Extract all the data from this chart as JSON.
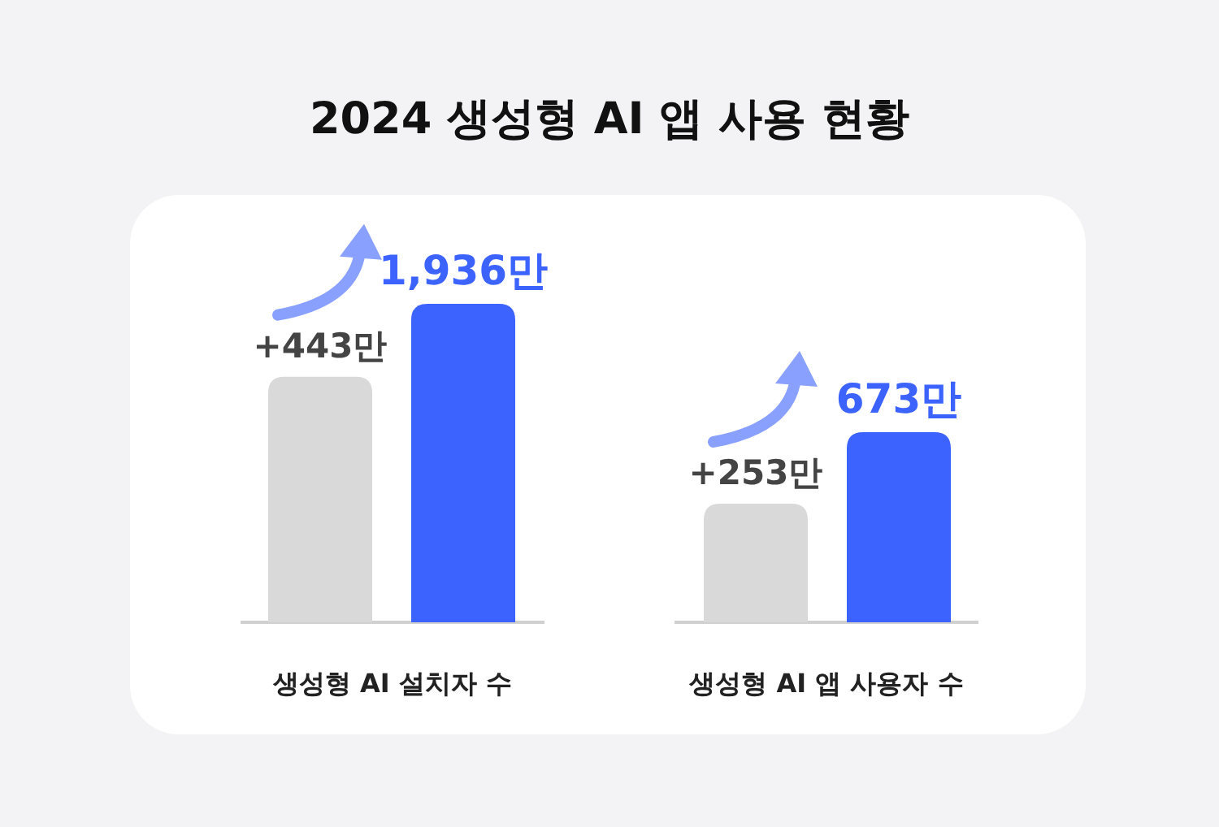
{
  "chart_data": [
    {
      "type": "bar",
      "title": "2024 생성형 AI 앱 사용 현황",
      "xlabel": "생성형 AI 설치자 수",
      "categories": [
        null,
        null
      ],
      "values": [
        1493,
        1936
      ],
      "colors": [
        "#d9d9d9",
        "#3d63ff"
      ],
      "value_labels": [
        null,
        "1,936만"
      ],
      "annotations": [
        "+443만"
      ]
    },
    {
      "type": "bar",
      "xlabel": "생성형 AI 앱 사용자 수",
      "categories": [
        null,
        null
      ],
      "values": [
        420,
        673
      ],
      "colors": [
        "#d9d9d9",
        "#3d63ff"
      ],
      "value_labels": [
        null,
        "673만"
      ],
      "annotations": [
        "+253만"
      ]
    }
  ]
}
